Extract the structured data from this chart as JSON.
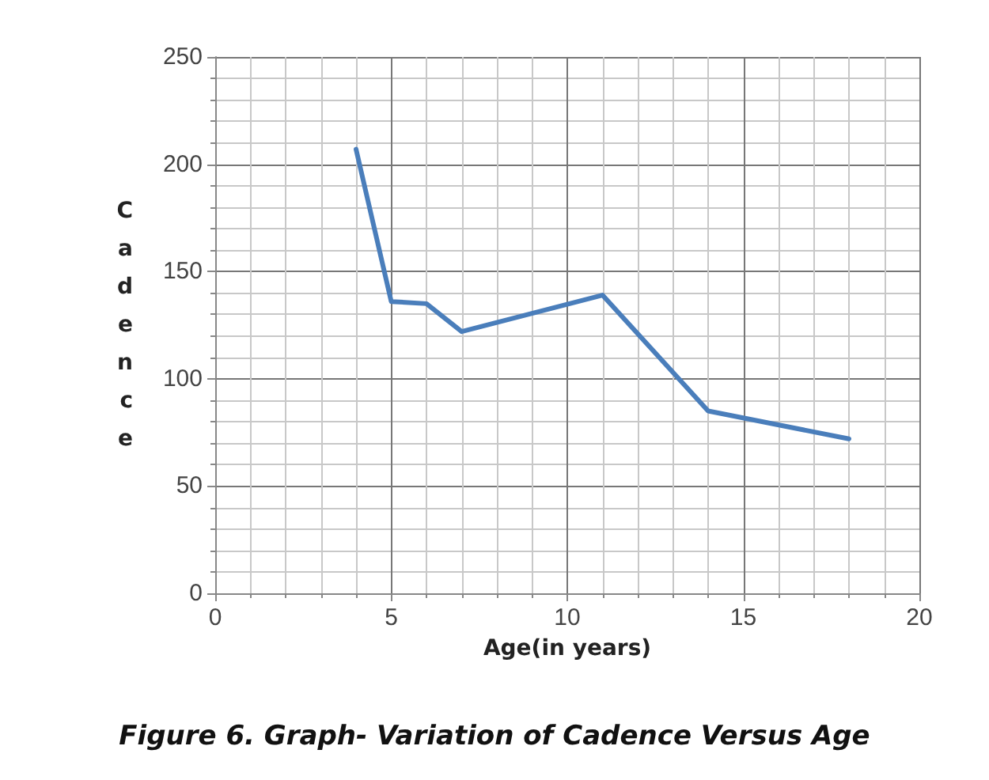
{
  "chart_data": {
    "type": "line",
    "title": "Figure 6. Graph- Variation of Cadence Versus Age",
    "xlabel": "Age(in years)",
    "ylabel": "Cadence",
    "x": [
      4,
      5,
      6,
      7,
      11,
      14,
      18
    ],
    "series": [
      {
        "color": "#4a7ebb",
        "values": [
          207,
          136,
          135,
          122,
          139,
          85,
          72
        ]
      }
    ],
    "xlim": [
      0,
      20
    ],
    "xticks": [
      0,
      5,
      10,
      15,
      20
    ],
    "ylim": [
      0,
      250
    ],
    "yticks": [
      0,
      50,
      100,
      150,
      200,
      250
    ],
    "grid": true,
    "marker": "none",
    "line_style": "solid"
  }
}
